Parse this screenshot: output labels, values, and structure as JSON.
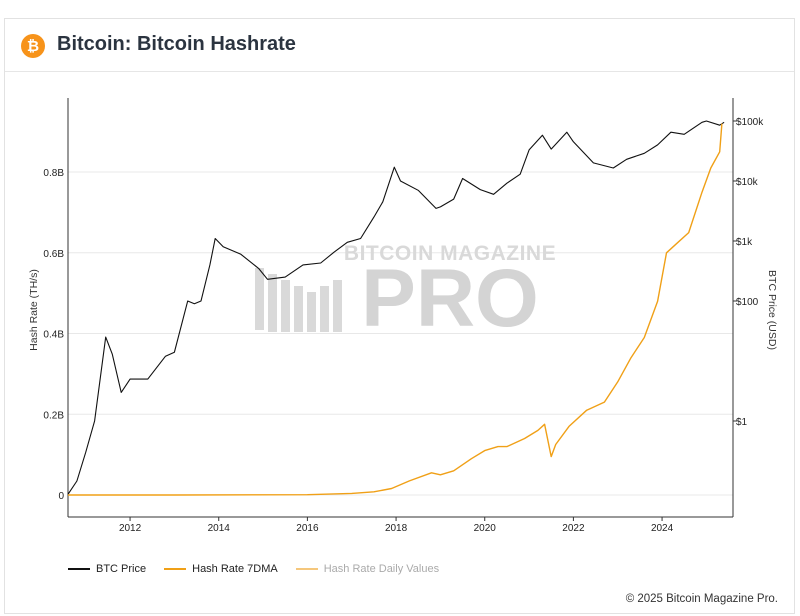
{
  "header": {
    "title": "Bitcoin: Bitcoin Hashrate",
    "logo_glyph": "₿",
    "logo_color": "#f7931a"
  },
  "chart_data": {
    "type": "line",
    "x_ticks": [
      "2012",
      "2014",
      "2016",
      "2018",
      "2020",
      "2022",
      "2024"
    ],
    "xlim": [
      2010.6,
      2025.6
    ],
    "y_left": {
      "label": "Hash Rate (TH/s)",
      "ticks": [
        "0",
        "0.2B",
        "0.4B",
        "0.6B",
        "0.8B"
      ],
      "tick_values": [
        0,
        0.2,
        0.4,
        0.6,
        0.8
      ],
      "ylim": [
        0,
        0.98
      ],
      "unit": "billion TH/s"
    },
    "y_right": {
      "label": "BTC Price (USD)",
      "scale": "log",
      "ticks": [
        "$1",
        "$100",
        "$1k",
        "$10k",
        "$100k"
      ],
      "tick_values": [
        1,
        100,
        1000,
        10000,
        100000
      ],
      "ylim": [
        0.04,
        180000
      ]
    },
    "grid": true,
    "series": [
      {
        "name": "BTC Price",
        "axis": "right",
        "color": "#111111",
        "x": [
          2010.6,
          2010.8,
          2011.0,
          2011.2,
          2011.45,
          2011.6,
          2011.8,
          2012.0,
          2012.4,
          2012.8,
          2013.0,
          2013.3,
          2013.45,
          2013.6,
          2013.8,
          2013.92,
          2014.1,
          2014.5,
          2014.9,
          2015.1,
          2015.5,
          2015.9,
          2016.3,
          2016.6,
          2016.9,
          2017.2,
          2017.5,
          2017.7,
          2017.96,
          2018.1,
          2018.5,
          2018.9,
          2019.0,
          2019.3,
          2019.5,
          2019.9,
          2020.2,
          2020.5,
          2020.8,
          2021.0,
          2021.3,
          2021.5,
          2021.85,
          2022.0,
          2022.45,
          2022.9,
          2023.2,
          2023.6,
          2023.9,
          2024.2,
          2024.5,
          2024.9,
          2025.0,
          2025.3,
          2025.4
        ],
        "y": [
          0.06,
          0.1,
          0.3,
          1.0,
          25,
          13,
          3,
          5,
          5,
          12,
          14,
          100,
          90,
          100,
          400,
          1100,
          800,
          600,
          350,
          230,
          250,
          400,
          430,
          650,
          950,
          1100,
          2500,
          4500,
          17000,
          10000,
          7000,
          3500,
          3700,
          5000,
          11000,
          7200,
          6000,
          9200,
          13000,
          33000,
          58000,
          34000,
          65000,
          45000,
          20000,
          16500,
          23000,
          29000,
          40000,
          65000,
          60000,
          95000,
          100000,
          85000,
          95000
        ]
      },
      {
        "name": "Hash Rate 7DMA",
        "axis": "left",
        "color": "#f0a017",
        "x": [
          2010.6,
          2013.0,
          2016.0,
          2017.0,
          2017.5,
          2017.9,
          2018.3,
          2018.8,
          2019.0,
          2019.3,
          2019.7,
          2020.0,
          2020.3,
          2020.5,
          2020.9,
          2021.2,
          2021.35,
          2021.5,
          2021.6,
          2021.9,
          2022.3,
          2022.7,
          2023.0,
          2023.3,
          2023.6,
          2023.9,
          2024.1,
          2024.3,
          2024.6,
          2024.9,
          2025.1,
          2025.3,
          2025.35
        ],
        "y": [
          0,
          5e-07,
          0.0008,
          0.004,
          0.008,
          0.016,
          0.035,
          0.055,
          0.05,
          0.06,
          0.09,
          0.11,
          0.12,
          0.12,
          0.14,
          0.16,
          0.175,
          0.095,
          0.125,
          0.17,
          0.21,
          0.23,
          0.28,
          0.34,
          0.39,
          0.48,
          0.6,
          0.62,
          0.65,
          0.75,
          0.81,
          0.85,
          0.92
        ]
      },
      {
        "name": "Hash Rate Daily Values",
        "axis": "left",
        "color": "#f5c77c",
        "x": [],
        "y": []
      }
    ]
  },
  "legend": [
    {
      "label": "BTC Price",
      "color": "#111111"
    },
    {
      "label": "Hash Rate 7DMA",
      "color": "#f0a017"
    },
    {
      "label": "Hash Rate Daily Values",
      "color": "#f5c77c"
    }
  ],
  "watermark": {
    "line1": "BITCOIN MAGAZINE",
    "line2": "PRO"
  },
  "footer": {
    "copyright": "© 2025 Bitcoin Magazine Pro."
  }
}
